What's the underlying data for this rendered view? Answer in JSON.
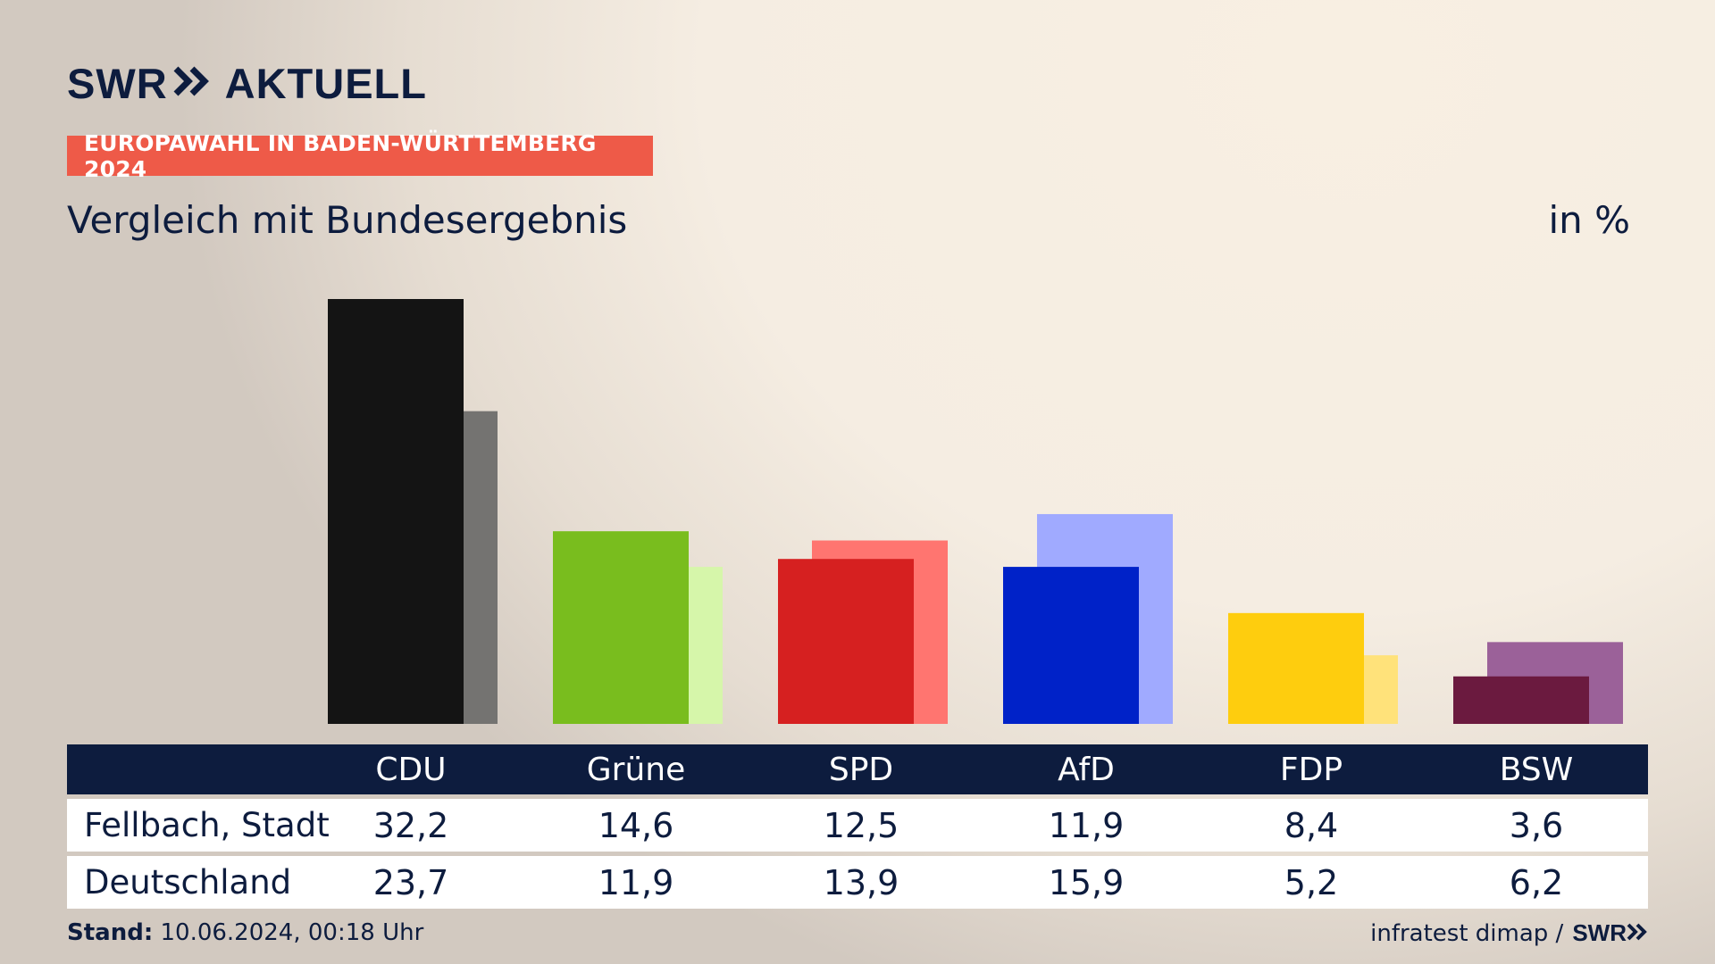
{
  "brand": {
    "logo_text_1": "SWR",
    "logo_text_2": "AKTUELL"
  },
  "tag": "EUROPAWAHL IN BADEN-WÜRTTEMBERG 2024",
  "subtitle": "Vergleich mit Bundesergebnis",
  "unit": "in %",
  "table": {
    "row_labels": [
      "Fellbach, Stadt",
      "Deutschland"
    ]
  },
  "footer": {
    "stand_label": "Stand:",
    "stand_value": "10.06.2024, 00:18 Uhr",
    "source": "infratest dimap /",
    "source_logo": "SWR"
  },
  "chart_data": {
    "type": "bar",
    "categories": [
      "CDU",
      "Grüne",
      "SPD",
      "AfD",
      "FDP",
      "BSW"
    ],
    "series": [
      {
        "name": "Fellbach, Stadt",
        "values": [
          32.2,
          14.6,
          12.5,
          11.9,
          8.4,
          3.6
        ],
        "colors": [
          "#141414",
          "#79bd1e",
          "#d62020",
          "#0022c8",
          "#fecd0e",
          "#6b1a3f"
        ]
      },
      {
        "name": "Deutschland",
        "values": [
          23.7,
          11.9,
          13.9,
          15.9,
          5.2,
          6.2
        ],
        "colors": [
          "#747371",
          "#d6f6aa",
          "#ff7570",
          "#a0aaff",
          "#ffe27a",
          "#9b6199"
        ]
      }
    ],
    "ylim": [
      0,
      32.2
    ],
    "grid": false
  }
}
